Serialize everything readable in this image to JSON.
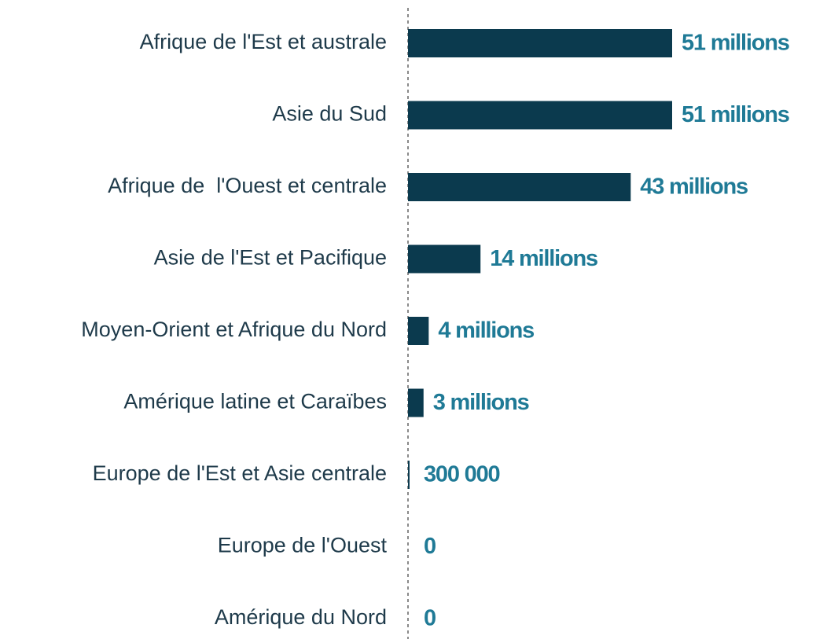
{
  "chart_data": {
    "type": "bar",
    "orientation": "horizontal",
    "categories": [
      "Afrique de l'Est et australe",
      "Asie du Sud",
      "Afrique de  l'Ouest et centrale",
      "Asie de l'Est et Pacifique",
      "Moyen-Orient et Afrique du Nord",
      "Amérique latine et Caraïbes",
      "Europe de l'Est et Asie centrale",
      "Europe de l'Ouest",
      "Amérique du Nord"
    ],
    "values": [
      51000000,
      51000000,
      43000000,
      14000000,
      4000000,
      3000000,
      300000,
      0,
      0
    ],
    "value_labels": [
      "51 millions",
      "51 millions",
      "43 millions",
      "14 millions",
      "4 millions",
      "3 millions",
      "300 000",
      "0",
      "0"
    ],
    "color": "#0b3a4e"
  }
}
